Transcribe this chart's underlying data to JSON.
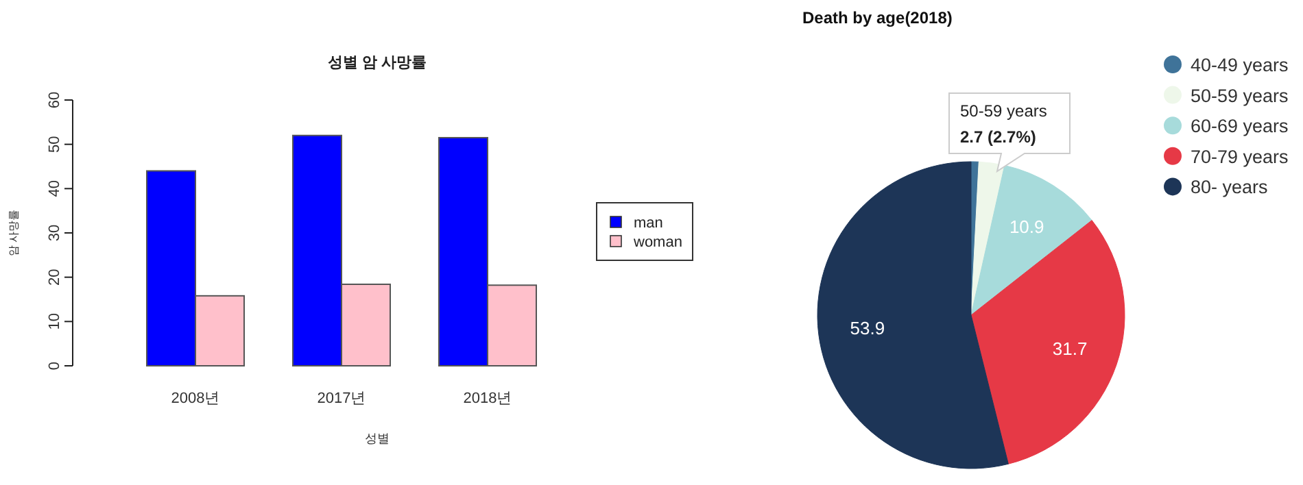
{
  "chart_data": [
    {
      "type": "bar",
      "title": "성별 암 사망률",
      "xlabel": "성별",
      "ylabel": "암 사망률",
      "categories": [
        "2008년",
        "2017년",
        "2018년"
      ],
      "series": [
        {
          "name": "man",
          "color": "#0000ff",
          "values": [
            44,
            52,
            51.5
          ]
        },
        {
          "name": "woman",
          "color": "#ffc0cb",
          "values": [
            15.8,
            18.4,
            18.2
          ]
        }
      ],
      "ylim": [
        0,
        60
      ],
      "yticks": [
        0,
        10,
        20,
        30,
        40,
        50,
        60
      ],
      "legend": "right",
      "grid": false
    },
    {
      "type": "pie",
      "title": "Death by age(2018)",
      "categories": [
        "40-49 years",
        "50-59 years",
        "60-69 years",
        "70-79 years",
        "80- years"
      ],
      "values": [
        0.8,
        2.7,
        10.9,
        31.7,
        53.9
      ],
      "colors": [
        "#3f7399",
        "#eef7ea",
        "#a7dbdb",
        "#e63946",
        "#1d3557"
      ],
      "value_labels": [
        null,
        null,
        "10.9",
        "31.7",
        "53.9"
      ],
      "annotations": [
        "50-59 years",
        "**2.7 (2.7%)**"
      ],
      "legend": "top right"
    }
  ]
}
